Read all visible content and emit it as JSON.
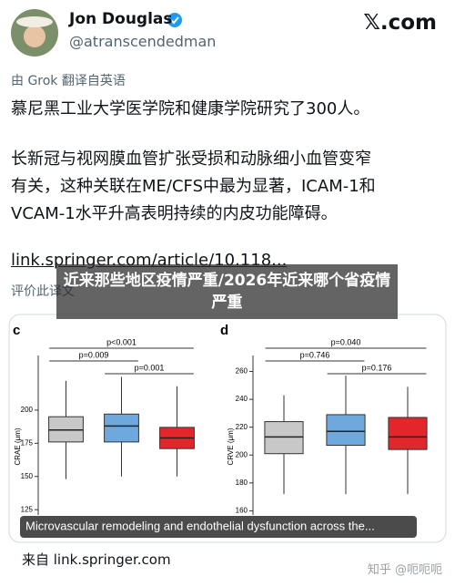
{
  "header": {
    "name": "Jon Douglas",
    "handle": "@atranscendedman",
    "site": "𝕏.com"
  },
  "translation_note": "由 Grok 翻译自英语",
  "paragraph_1": "慕尼黑工业大学医学院和健康学院研究了300人。",
  "paragraph_2_lines": [
    "长新冠与视网膜血管扩张受损和动脉细小血管变窄",
    "有关，这种关联在ME/CFS中最为显著，ICAM-1和",
    "VCAM-1水平升高表明持续的内皮功能障碍。"
  ],
  "link": "link.springer.com/article/10.118...",
  "rate_translation": "评价此译文",
  "overlay_title": "近来那些地区疫情严重/2026年近来哪个省疫情严重",
  "chart_data": [
    {
      "type": "box",
      "panel": "c",
      "y_label": "CRAE (μm)",
      "ylim": [
        121,
        248
      ],
      "yticks": [
        125,
        150,
        175,
        200
      ],
      "boxes": [
        {
          "color": "#c8c8c8",
          "low": 148,
          "q1": 176,
          "median": 185,
          "q3": 195,
          "high": 222
        },
        {
          "color": "#6fa8dc",
          "low": 150,
          "q1": 176,
          "median": 188,
          "q3": 197,
          "high": 225
        },
        {
          "color": "#e3262b",
          "low": 150,
          "q1": 171,
          "median": 179,
          "q3": 187,
          "high": 218
        }
      ],
      "brackets": [
        {
          "label": "p<0.001",
          "from": 0,
          "to": 2
        },
        {
          "label": "p=0.009",
          "from": 0,
          "to": 1
        },
        {
          "label": "p=0.001",
          "from": 1,
          "to": 2
        }
      ]
    },
    {
      "type": "box",
      "panel": "d",
      "y_label": "CRVE (μm)",
      "ylim": [
        157,
        278
      ],
      "yticks": [
        160,
        180,
        200,
        220,
        240,
        260
      ],
      "boxes": [
        {
          "color": "#c8c8c8",
          "low": 172,
          "q1": 201,
          "median": 213,
          "q3": 224,
          "high": 243
        },
        {
          "color": "#6fa8dc",
          "low": 172,
          "q1": 207,
          "median": 217,
          "q3": 229,
          "high": 257
        },
        {
          "color": "#e3262b",
          "low": 172,
          "q1": 204,
          "median": 213,
          "q3": 227,
          "high": 249
        }
      ],
      "brackets": [
        {
          "label": "p=0.040",
          "from": 0,
          "to": 2
        },
        {
          "label": "p=0.746",
          "from": 0,
          "to": 1
        },
        {
          "label": "p=0.176",
          "from": 1,
          "to": 2
        }
      ]
    }
  ],
  "image_caption": "Microvascular remodeling and endothelial dysfunction across the...",
  "source": "来自 link.springer.com",
  "watermark": "知乎 @呃呃呃"
}
